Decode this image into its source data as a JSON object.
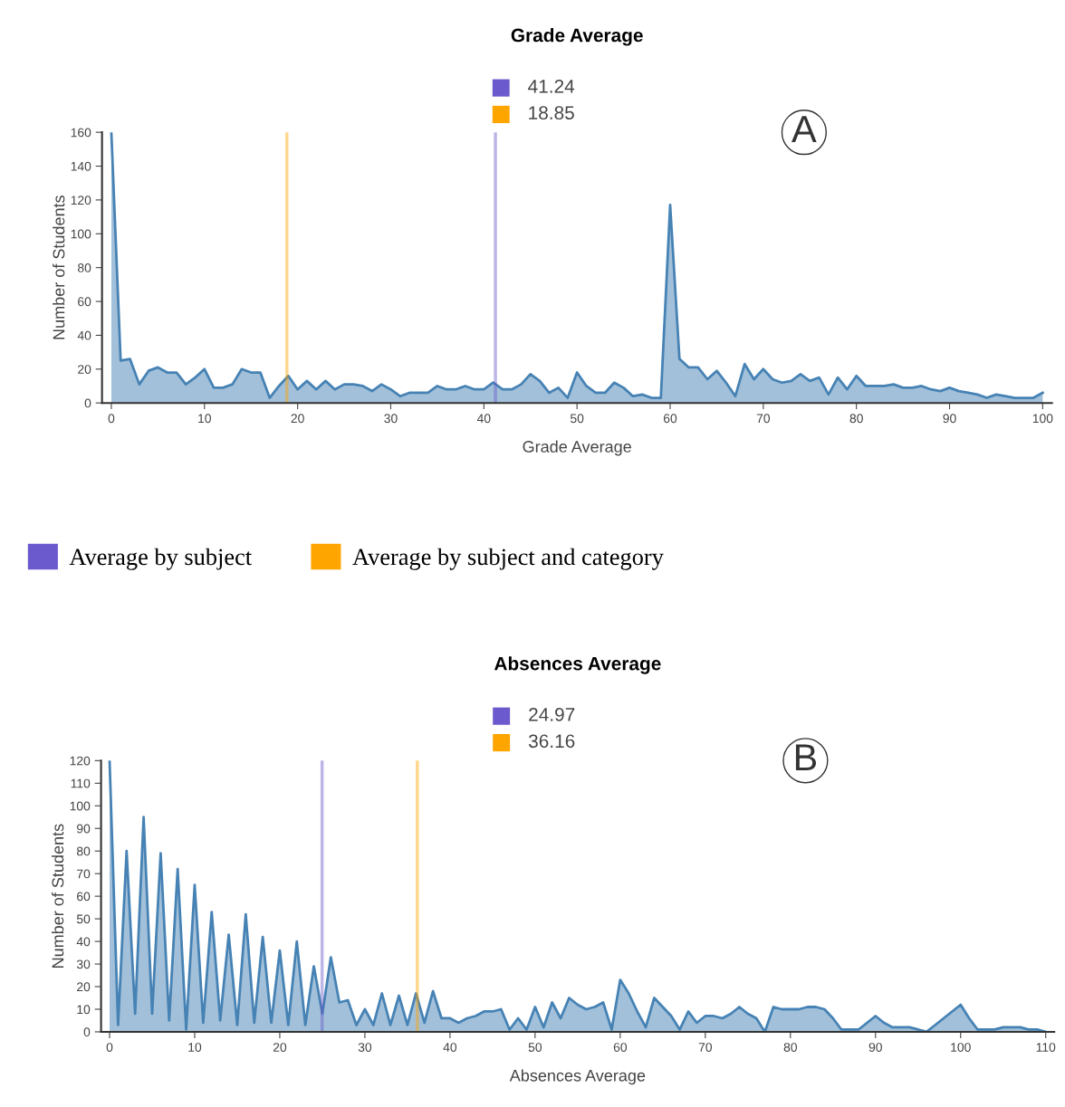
{
  "chart_data": [
    {
      "type": "area",
      "title": "Grade Average",
      "xlabel": "Grade Average",
      "ylabel": "Number of Students",
      "x": [
        0,
        1,
        2,
        3,
        4,
        5,
        6,
        7,
        8,
        9,
        10,
        11,
        12,
        13,
        14,
        15,
        16,
        17,
        18,
        19,
        20,
        21,
        22,
        23,
        24,
        25,
        26,
        27,
        28,
        29,
        30,
        31,
        32,
        33,
        34,
        35,
        36,
        37,
        38,
        39,
        40,
        41,
        42,
        43,
        44,
        45,
        46,
        47,
        48,
        49,
        50,
        51,
        52,
        53,
        54,
        55,
        56,
        57,
        58,
        59,
        60,
        61,
        62,
        63,
        64,
        65,
        66,
        67,
        68,
        69,
        70,
        71,
        72,
        73,
        74,
        75,
        76,
        77,
        78,
        79,
        80,
        81,
        82,
        83,
        84,
        85,
        86,
        87,
        88,
        89,
        90,
        91,
        92,
        93,
        94,
        95,
        96,
        97,
        98,
        99,
        100
      ],
      "values": [
        160,
        25,
        26,
        11,
        19,
        21,
        18,
        18,
        11,
        15,
        20,
        9,
        9,
        11,
        20,
        18,
        18,
        3,
        10,
        16,
        8,
        13,
        8,
        13,
        8,
        11,
        11,
        10,
        7,
        11,
        8,
        4,
        6,
        6,
        6,
        10,
        8,
        8,
        10,
        8,
        8,
        12,
        8,
        8,
        11,
        17,
        13,
        6,
        9,
        3,
        18,
        10,
        6,
        6,
        12,
        9,
        4,
        5,
        3,
        3,
        117,
        26,
        21,
        21,
        14,
        19,
        12,
        4,
        23,
        14,
        20,
        14,
        12,
        13,
        17,
        13,
        15,
        5,
        15,
        8,
        16,
        10,
        10,
        10,
        11,
        9,
        9,
        10,
        8,
        7,
        9,
        7,
        6,
        5,
        3,
        5,
        4,
        3,
        3,
        3,
        6
      ],
      "color": "#4682b4",
      "xlim": [
        -1,
        101
      ],
      "ylim": [
        0,
        160
      ],
      "xticks": [
        0,
        10,
        20,
        30,
        40,
        50,
        60,
        70,
        80,
        90,
        100
      ],
      "yticks": [
        0,
        20,
        40,
        60,
        80,
        100,
        120,
        140,
        160
      ],
      "grid": false,
      "legend": "bottom",
      "ref_lines": [
        {
          "axis": "x",
          "value": 41.24,
          "label": "Average by subject",
          "color": "#6a5acd"
        },
        {
          "axis": "x",
          "value": 18.85,
          "label": "Average by subject and category",
          "color": "#ffa500"
        }
      ],
      "annotations": [
        "41.24",
        "18.85",
        "A"
      ]
    },
    {
      "type": "area",
      "title": "Absences Average",
      "xlabel": "Absences Average",
      "ylabel": "Number of Students",
      "x": [
        0,
        1,
        2,
        3,
        4,
        5,
        6,
        7,
        8,
        9,
        10,
        11,
        12,
        13,
        14,
        15,
        16,
        17,
        18,
        19,
        20,
        21,
        22,
        23,
        24,
        25,
        26,
        27,
        28,
        29,
        30,
        31,
        32,
        33,
        34,
        35,
        36,
        37,
        38,
        39,
        40,
        41,
        42,
        43,
        44,
        45,
        46,
        47,
        48,
        49,
        50,
        51,
        52,
        53,
        54,
        55,
        56,
        57,
        58,
        59,
        60,
        61,
        62,
        63,
        64,
        65,
        66,
        67,
        68,
        69,
        70,
        71,
        72,
        73,
        74,
        75,
        76,
        77,
        78,
        79,
        80,
        81,
        82,
        83,
        84,
        85,
        86,
        87,
        88,
        89,
        90,
        91,
        92,
        93,
        94,
        95,
        96,
        97,
        98,
        99,
        100,
        101,
        102,
        103,
        104,
        105,
        106,
        107,
        108,
        109,
        110
      ],
      "values": [
        120,
        3,
        80,
        8,
        95,
        8,
        79,
        5,
        72,
        1,
        65,
        4,
        53,
        5,
        43,
        3,
        52,
        4,
        42,
        4,
        36,
        3,
        40,
        3,
        29,
        8,
        33,
        13,
        14,
        3,
        10,
        3,
        17,
        3,
        16,
        3,
        17,
        4,
        18,
        6,
        6,
        4,
        6,
        7,
        9,
        9,
        10,
        1,
        6,
        1,
        11,
        2,
        13,
        6,
        15,
        12,
        10,
        11,
        13,
        1,
        23,
        17,
        9,
        2,
        15,
        11,
        7,
        1,
        9,
        4,
        7,
        7,
        6,
        8,
        11,
        8,
        6,
        0,
        11,
        10,
        10,
        10,
        11,
        11,
        10,
        6,
        1,
        1,
        1,
        4,
        7,
        4,
        2,
        2,
        2,
        1,
        0,
        3,
        6,
        9,
        12,
        6,
        1,
        1,
        1,
        2,
        2,
        2,
        1,
        1,
        0
      ],
      "color": "#4682b4",
      "xlim": [
        -1,
        111
      ],
      "ylim": [
        0,
        120
      ],
      "xticks": [
        0,
        10,
        20,
        30,
        40,
        50,
        60,
        70,
        80,
        90,
        100,
        110
      ],
      "yticks": [
        0,
        10,
        20,
        30,
        40,
        50,
        60,
        70,
        80,
        90,
        100,
        110,
        120
      ],
      "grid": false,
      "ref_lines": [
        {
          "axis": "x",
          "value": 24.97,
          "color": "#6a5acd"
        },
        {
          "axis": "x",
          "value": 36.16,
          "color": "#ffa500"
        }
      ],
      "annotations": [
        "24.97",
        "36.16",
        "B"
      ]
    }
  ]
}
